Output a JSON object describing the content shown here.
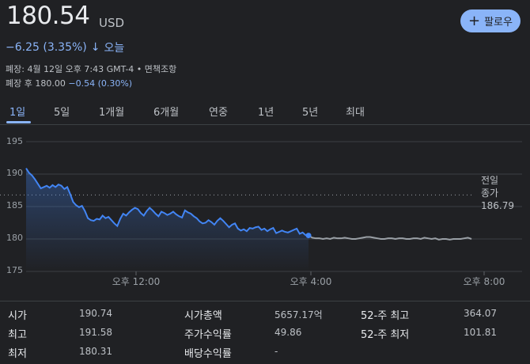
{
  "quote": {
    "price": "180.54",
    "currency": "USD",
    "change": "−6.25 (3.35%)",
    "arrow": "↓",
    "period": "오늘",
    "close_info": "폐장: 4월 12일 오후 7:43 GMT-4 • 면책조항",
    "after_hours_label": "폐장 후",
    "after_hours_price": "180.00",
    "after_hours_change": "−0.54 (0.30%)"
  },
  "follow_button": {
    "icon": "plus-icon",
    "label": "팔로우"
  },
  "tabs": [
    "1일",
    "5일",
    "1개월",
    "6개월",
    "연중",
    "1년",
    "5년",
    "최대"
  ],
  "active_tab": "1일",
  "colors": {
    "accent": "#8ab4f8",
    "line": "#4285f4",
    "after_hours_line": "#9aa0a6",
    "background": "#202124"
  },
  "chart_data": {
    "type": "line",
    "ylim": [
      175,
      195
    ],
    "yticks": [
      "195",
      "190",
      "185",
      "180",
      "175"
    ],
    "xticks": [
      "오후 12:00",
      "오후 4:00",
      "오후 8:00"
    ],
    "previous_close_label_1": "전일",
    "previous_close_label_2": "종가",
    "previous_close": 186.79,
    "grid": true,
    "series": [
      {
        "values": [
          190.9,
          190.2,
          189.8,
          189.2,
          188.5,
          187.8,
          188.0,
          188.2,
          187.9,
          188.3,
          188.0,
          188.4,
          188.2,
          187.7,
          188.0,
          186.9,
          185.7,
          185.2,
          184.9,
          185.1,
          184.3,
          183.2,
          182.9,
          182.8,
          183.1,
          183.0,
          183.6,
          183.2,
          183.4,
          182.9,
          182.4,
          182.0,
          183.1,
          183.9,
          183.6,
          184.1,
          184.5,
          184.8,
          184.6,
          184.0,
          183.6,
          184.3,
          184.8,
          184.4,
          183.9,
          183.5,
          184.2,
          184.0,
          183.7,
          183.9,
          184.2,
          183.8,
          183.5,
          183.3,
          184.4,
          184.1,
          183.9,
          183.5,
          183.2,
          182.7,
          182.4,
          182.5,
          182.9,
          182.6,
          182.2,
          182.8,
          183.2,
          182.8,
          182.3,
          181.8,
          182.2,
          182.4,
          181.6,
          181.3,
          181.5,
          181.2,
          181.7,
          181.6,
          181.8,
          181.9,
          181.4,
          181.6,
          181.2,
          181.5,
          181.7,
          180.9,
          181.1,
          181.3,
          181.1,
          181.0,
          181.2,
          181.4,
          181.6,
          180.8,
          181.0,
          180.6,
          180.54
        ]
      },
      {
        "values": [
          180.54,
          180.2,
          180.1,
          180.1,
          180.0,
          180.1,
          180.0,
          180.2,
          180.1,
          180.1,
          180.2,
          180.1,
          180.0,
          180.0,
          180.1,
          180.2,
          180.3,
          180.3,
          180.2,
          180.1,
          180.0,
          180.0,
          180.1,
          180.1,
          180.0,
          180.1,
          180.1,
          180.0,
          180.0,
          180.1,
          180.1,
          180.0,
          180.2,
          180.1,
          180.0,
          180.1,
          179.9,
          180.0,
          180.0,
          179.9,
          180.0,
          180.0,
          180.0,
          180.1,
          180.2,
          180.0
        ]
      }
    ]
  },
  "stats": [
    {
      "label": "시가",
      "value": "190.74"
    },
    {
      "label": "최고",
      "value": "191.58"
    },
    {
      "label": "최저",
      "value": "180.31"
    },
    {
      "label": "시가총액",
      "value": "5657.17억"
    },
    {
      "label": "주가수익률",
      "value": "49.86"
    },
    {
      "label": "배당수익률",
      "value": "-"
    },
    {
      "label": "52-주 최고",
      "value": "364.07"
    },
    {
      "label": "52-주 최저",
      "value": "101.81"
    }
  ]
}
